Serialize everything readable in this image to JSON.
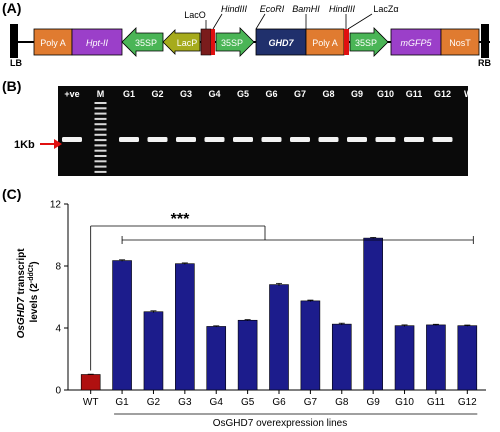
{
  "panels": {
    "a": {
      "label": "(A)",
      "lb": "LB",
      "rb": "RB",
      "boxes": {
        "polya1": "Poly A",
        "hpt": "Hpt-II",
        "sp35_1": "35SP",
        "lacp": "LacP",
        "sp35_2": "35SP",
        "ghd7": "GHD7",
        "polya2": "Poly A",
        "sp35_3": "35SP",
        "mgfp5": "mGFP5",
        "nost": "NosT"
      },
      "sites": {
        "laco": "LacO",
        "hind1": "HindIII",
        "ecori": "EcoRI",
        "bamhi": "BamHI",
        "hind2": "HindIII",
        "laczalpha": "LacZα"
      },
      "colors": {
        "polya": "#e07b30",
        "hpt": "#9b3fc9",
        "sp35": "#4ab556",
        "lacp": "#a6ab1c",
        "ghd7": "#20306c",
        "nost": "#e07b30",
        "laco": "#7a1c1c",
        "red_site": "#e01010"
      }
    },
    "b": {
      "label": "(B)",
      "lanes": [
        "+ve",
        "M",
        "G1",
        "G2",
        "G3",
        "G4",
        "G5",
        "G6",
        "G7",
        "G8",
        "G9",
        "G10",
        "G11",
        "G12",
        "WT"
      ],
      "marker": "1Kb"
    },
    "c": {
      "label": "(C)",
      "ylabel": "OsGHD7 transcript levels (2-ddCt)",
      "xlabel": "OsGHD7 overexpression lines",
      "significance": "***"
    }
  },
  "chart_data": {
    "type": "bar",
    "categories": [
      "WT",
      "G1",
      "G2",
      "G3",
      "G4",
      "G5",
      "G6",
      "G7",
      "G8",
      "G9",
      "G10",
      "G11",
      "G12"
    ],
    "values": [
      1.0,
      8.35,
      5.05,
      8.15,
      4.1,
      4.5,
      6.8,
      5.75,
      4.25,
      9.8,
      4.15,
      4.2,
      4.15
    ],
    "errors": [
      0.02,
      0.05,
      0.06,
      0.05,
      0.04,
      0.04,
      0.08,
      0.05,
      0.06,
      0.04,
      0.05,
      0.04,
      0.04
    ],
    "yticks": [
      0,
      4,
      8,
      12
    ],
    "ylim": [
      0,
      12
    ],
    "colors": {
      "wt": "#b01010",
      "lines": "#1c1c8c"
    },
    "xlabel": "OsGHD7 overexpression lines",
    "ylabel": "OsGHD7 transcript levels (2-ddCt)"
  }
}
